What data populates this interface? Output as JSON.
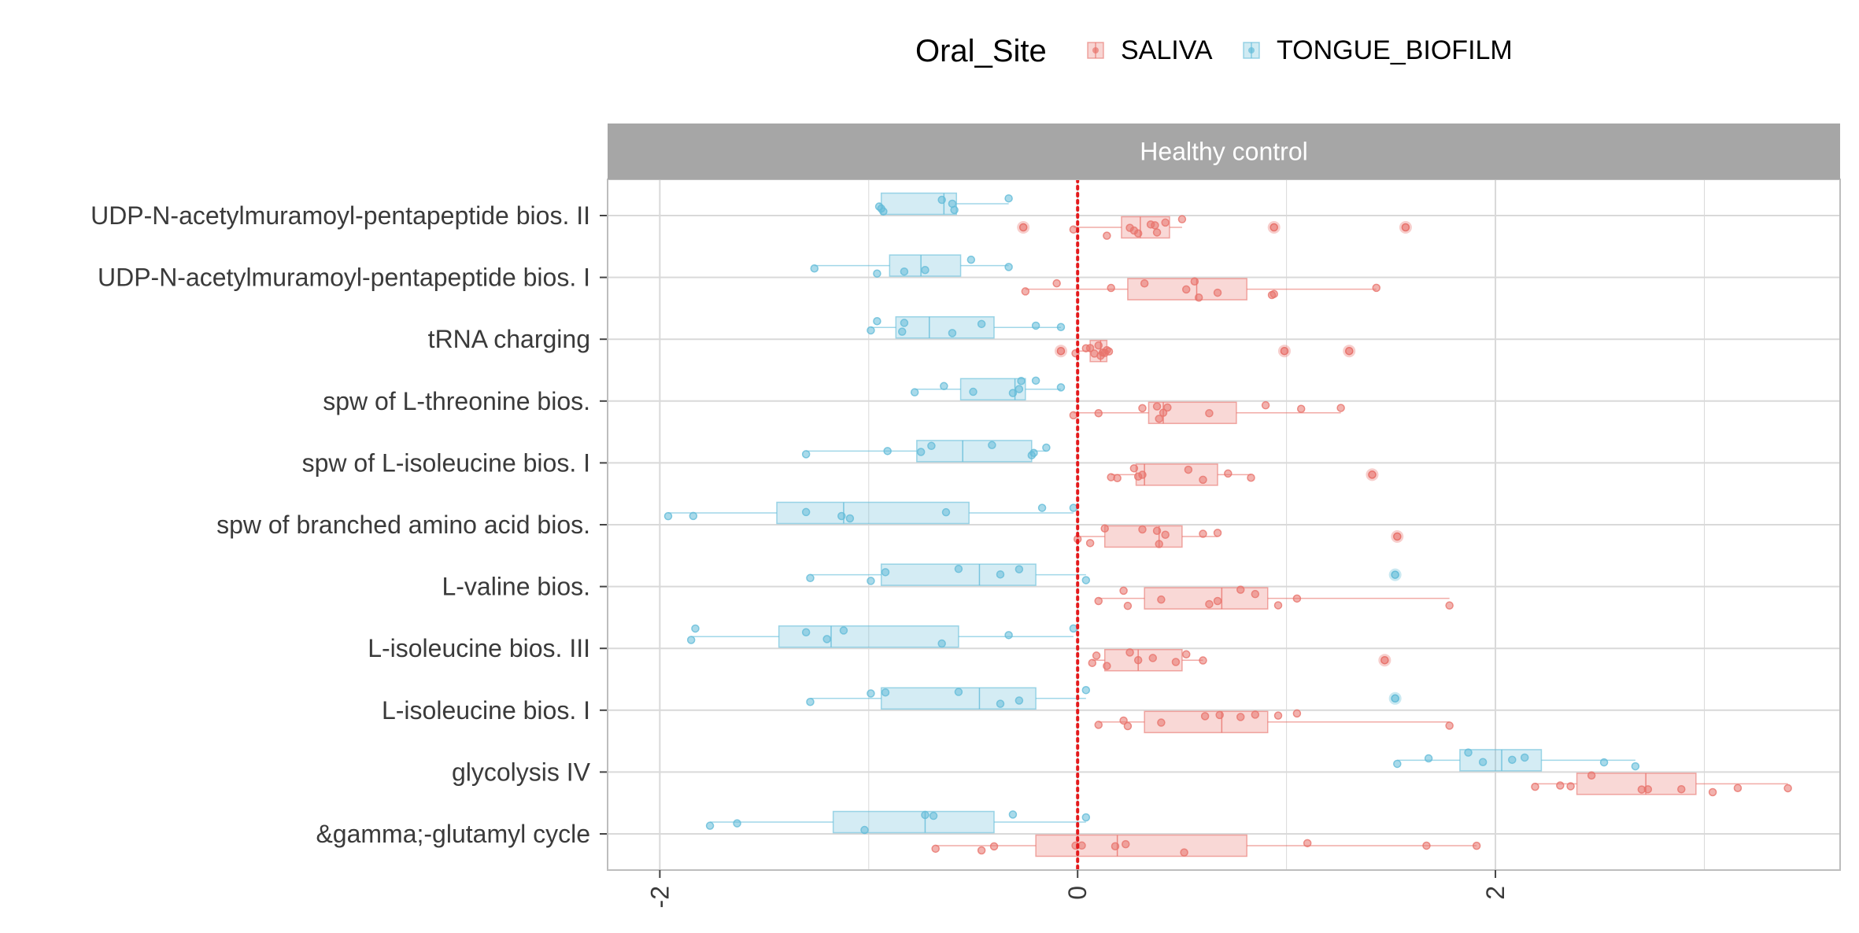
{
  "chart_data": {
    "type": "boxplot",
    "facet_title": "Healthy control",
    "legend": {
      "title": "Oral_Site",
      "position": "top",
      "entries": [
        "SALIVA",
        "TONGUE_BIOFILM"
      ]
    },
    "xlim": [
      -2.25,
      3.65
    ],
    "xticks": [
      -2,
      0,
      2
    ],
    "reference_line": {
      "x": 0,
      "color": "#e41a1c",
      "style": "dotted"
    },
    "colors": {
      "SALIVA": "#e8736c",
      "TONGUE_BIOFILM": "#63bcd8",
      "strip": "#a6a6a6",
      "grid": "#d9d9d9"
    },
    "categories": [
      "UDP-N-acetylmuramoyl-pentapeptide bios. II",
      "UDP-N-acetylmuramoyl-pentapeptide bios. I",
      "tRNA charging",
      "spw of L-threonine bios.",
      "spw of L-isoleucine bios. I",
      "spw of branched amino acid bios.",
      "L-valine bios.",
      "L-isoleucine bios. III",
      "L-isoleucine bios. I",
      "glycolysis IV",
      "&gamma;-glutamyl cycle"
    ],
    "series": [
      {
        "name": "SALIVA",
        "boxes": [
          {
            "category": "UDP-N-acetylmuramoyl-pentapeptide bios. II",
            "whisker_low": -0.02,
            "q1": 0.21,
            "median": 0.3,
            "q3": 0.44,
            "whisker_high": 0.5,
            "points": [
              -0.02,
              0.14,
              0.25,
              0.27,
              0.29,
              0.35,
              0.37,
              0.38,
              0.42,
              0.5
            ],
            "outliers": [
              -0.26,
              0.94,
              1.57
            ]
          },
          {
            "category": "UDP-N-acetylmuramoyl-pentapeptide bios. I",
            "whisker_low": -0.25,
            "q1": 0.24,
            "median": 0.57,
            "q3": 0.81,
            "whisker_high": 1.43,
            "points": [
              -0.25,
              -0.1,
              0.16,
              0.32,
              0.52,
              0.56,
              0.58,
              0.67,
              0.93,
              0.94,
              1.43
            ],
            "outliers": []
          },
          {
            "category": "tRNA charging",
            "whisker_low": -0.01,
            "q1": 0.06,
            "median": 0.11,
            "q3": 0.14,
            "whisker_high": 0.15,
            "points": [
              -0.01,
              0.04,
              0.06,
              0.08,
              0.1,
              0.11,
              0.12,
              0.13,
              0.14,
              0.15
            ],
            "outliers": [
              -0.08,
              0.99,
              1.3
            ]
          },
          {
            "category": "spw of L-threonine bios.",
            "whisker_low": -0.02,
            "q1": 0.34,
            "median": 0.41,
            "q3": 0.76,
            "whisker_high": 1.26,
            "points": [
              -0.02,
              0.1,
              0.31,
              0.38,
              0.39,
              0.41,
              0.43,
              0.63,
              0.9,
              1.07,
              1.26
            ],
            "outliers": []
          },
          {
            "category": "spw of L-isoleucine bios. I",
            "whisker_low": 0.16,
            "q1": 0.28,
            "median": 0.32,
            "q3": 0.67,
            "whisker_high": 0.83,
            "points": [
              0.16,
              0.19,
              0.27,
              0.29,
              0.31,
              0.53,
              0.6,
              0.72,
              0.83
            ],
            "outliers": [
              1.41
            ]
          },
          {
            "category": "spw of branched amino acid bios.",
            "whisker_low": 0,
            "q1": 0.13,
            "median": 0.39,
            "q3": 0.5,
            "whisker_high": 0.67,
            "points": [
              0,
              0.06,
              0.13,
              0.31,
              0.38,
              0.39,
              0.42,
              0.6,
              0.67
            ],
            "outliers": [
              1.53
            ]
          },
          {
            "category": "L-valine bios.",
            "whisker_low": 0.1,
            "q1": 0.32,
            "median": 0.69,
            "q3": 0.91,
            "whisker_high": 1.78,
            "points": [
              0.1,
              0.22,
              0.24,
              0.4,
              0.63,
              0.67,
              0.78,
              0.85,
              0.96,
              1.05,
              1.78
            ],
            "outliers": []
          },
          {
            "category": "L-isoleucine bios. III",
            "whisker_low": 0.07,
            "q1": 0.13,
            "median": 0.29,
            "q3": 0.5,
            "whisker_high": 0.6,
            "points": [
              0.07,
              0.09,
              0.14,
              0.25,
              0.29,
              0.36,
              0.47,
              0.52,
              0.6
            ],
            "outliers": [
              1.47
            ]
          },
          {
            "category": "L-isoleucine bios. I",
            "whisker_low": 0.1,
            "q1": 0.32,
            "median": 0.69,
            "q3": 0.91,
            "whisker_high": 1.78,
            "points": [
              0.1,
              0.22,
              0.24,
              0.4,
              0.61,
              0.68,
              0.78,
              0.85,
              0.96,
              1.05,
              1.78
            ],
            "outliers": []
          },
          {
            "category": "glycolysis IV",
            "whisker_low": 2.19,
            "q1": 2.39,
            "median": 2.72,
            "q3": 2.96,
            "whisker_high": 3.4,
            "points": [
              2.19,
              2.31,
              2.36,
              2.46,
              2.7,
              2.73,
              2.89,
              3.04,
              3.16,
              3.4
            ],
            "outliers": []
          },
          {
            "category": "&gamma;-glutamyl cycle",
            "whisker_low": -0.68,
            "q1": -0.2,
            "median": 0.19,
            "q3": 0.81,
            "whisker_high": 1.91,
            "points": [
              -0.68,
              -0.46,
              -0.4,
              -0.01,
              0.02,
              0.18,
              0.23,
              0.51,
              1.1,
              1.67,
              1.91
            ],
            "outliers": []
          }
        ]
      },
      {
        "name": "TONGUE_BIOFILM",
        "boxes": [
          {
            "category": "UDP-N-acetylmuramoyl-pentapeptide bios. II",
            "whisker_low": -0.95,
            "q1": -0.94,
            "median": -0.64,
            "q3": -0.58,
            "whisker_high": -0.33,
            "points": [
              -0.95,
              -0.94,
              -0.93,
              -0.65,
              -0.6,
              -0.59,
              -0.33
            ],
            "outliers": []
          },
          {
            "category": "UDP-N-acetylmuramoyl-pentapeptide bios. I",
            "whisker_low": -1.26,
            "q1": -0.9,
            "median": -0.75,
            "q3": -0.56,
            "whisker_high": -0.33,
            "points": [
              -1.26,
              -0.96,
              -0.83,
              -0.73,
              -0.51,
              -0.33
            ],
            "outliers": []
          },
          {
            "category": "tRNA charging",
            "whisker_low": -0.99,
            "q1": -0.87,
            "median": -0.71,
            "q3": -0.4,
            "whisker_high": -0.08,
            "points": [
              -0.99,
              -0.96,
              -0.84,
              -0.83,
              -0.6,
              -0.46,
              -0.2,
              -0.08
            ],
            "outliers": []
          },
          {
            "category": "spw of L-threonine bios.",
            "whisker_low": -0.78,
            "q1": -0.56,
            "median": -0.3,
            "q3": -0.25,
            "whisker_high": -0.08,
            "points": [
              -0.78,
              -0.64,
              -0.5,
              -0.31,
              -0.28,
              -0.27,
              -0.2,
              -0.08
            ],
            "outliers": []
          },
          {
            "category": "spw of L-isoleucine bios. I",
            "whisker_low": -1.3,
            "q1": -0.77,
            "median": -0.55,
            "q3": -0.22,
            "whisker_high": -0.15,
            "points": [
              -1.3,
              -0.91,
              -0.75,
              -0.7,
              -0.41,
              -0.22,
              -0.21,
              -0.15
            ],
            "outliers": []
          },
          {
            "category": "spw of branched amino acid bios.",
            "whisker_low": -1.96,
            "q1": -1.44,
            "median": -1.12,
            "q3": -0.52,
            "whisker_high": -0.02,
            "points": [
              -1.96,
              -1.84,
              -1.3,
              -1.13,
              -1.09,
              -0.63,
              -0.17,
              -0.02
            ],
            "outliers": []
          },
          {
            "category": "L-valine bios.",
            "whisker_low": -1.28,
            "q1": -0.94,
            "median": -0.47,
            "q3": -0.2,
            "whisker_high": 0.04,
            "points": [
              -1.28,
              -0.99,
              -0.92,
              -0.57,
              -0.37,
              -0.28,
              0.04
            ],
            "outliers": [
              1.52
            ]
          },
          {
            "category": "L-isoleucine bios. III",
            "whisker_low": -1.85,
            "q1": -1.43,
            "median": -1.18,
            "q3": -0.57,
            "whisker_high": -0.02,
            "points": [
              -1.85,
              -1.83,
              -1.3,
              -1.2,
              -1.12,
              -0.65,
              -0.33,
              -0.02
            ],
            "outliers": []
          },
          {
            "category": "L-isoleucine bios. I",
            "whisker_low": -1.28,
            "q1": -0.94,
            "median": -0.47,
            "q3": -0.2,
            "whisker_high": 0.04,
            "points": [
              -1.28,
              -0.99,
              -0.92,
              -0.57,
              -0.37,
              -0.28,
              0.04
            ],
            "outliers": [
              1.52
            ]
          },
          {
            "category": "glycolysis IV",
            "whisker_low": 1.53,
            "q1": 1.83,
            "median": 2.03,
            "q3": 2.22,
            "whisker_high": 2.67,
            "points": [
              1.53,
              1.68,
              1.87,
              1.94,
              2.08,
              2.14,
              2.52,
              2.67
            ],
            "outliers": []
          },
          {
            "category": "&gamma;-glutamyl cycle",
            "whisker_low": -1.76,
            "q1": -1.17,
            "median": -0.73,
            "q3": -0.4,
            "whisker_high": 0.04,
            "points": [
              -1.76,
              -1.63,
              -1.02,
              -0.73,
              -0.69,
              -0.31,
              0.04
            ],
            "outliers": []
          }
        ]
      }
    ]
  }
}
